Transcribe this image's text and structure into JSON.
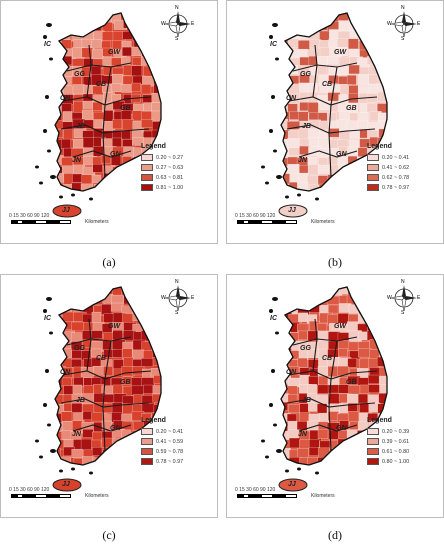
{
  "panels": [
    {
      "label": "(a)",
      "legend_title": "Legend",
      "legend": [
        {
          "range": "0.20 ~ 0.27",
          "color": "#f7d6d2"
        },
        {
          "range": "0.27 ~ 0.63",
          "color": "#eb9c8d"
        },
        {
          "range": "0.63 ~ 0.81",
          "color": "#d6533f"
        },
        {
          "range": "0.81 ~ 1.00",
          "color": "#a80f0f"
        }
      ],
      "regions": [
        "IC",
        "GW",
        "GG",
        "CN",
        "CB",
        "JB",
        "GB",
        "GN",
        "JN",
        "JJ"
      ],
      "palette": {
        "base": "#d9442e",
        "light": "#ec9a88",
        "dark": "#a51010"
      }
    },
    {
      "label": "(b)",
      "legend_title": "Legend",
      "legend": [
        {
          "range": "0.20 ~ 0.41",
          "color": "#f7dcda"
        },
        {
          "range": "0.41 ~ 0.62",
          "color": "#ecaa9d"
        },
        {
          "range": "0.62 ~ 0.78",
          "color": "#dc6a55"
        },
        {
          "range": "0.78 ~ 0.97",
          "color": "#c22a1a"
        }
      ],
      "regions": [
        "IC",
        "GW",
        "GG",
        "CN",
        "CB",
        "JB",
        "GB",
        "GN",
        "JN",
        "JJ"
      ],
      "palette": {
        "base": "#f3cfc7",
        "light": "#f8e4e0",
        "dark": "#d05a45"
      }
    },
    {
      "label": "(c)",
      "legend_title": "Legend",
      "legend": [
        {
          "range": "0.20 ~ 0.41",
          "color": "#f7d6d2"
        },
        {
          "range": "0.41 ~ 0.59",
          "color": "#eb9c8d"
        },
        {
          "range": "0.59 ~ 0.78",
          "color": "#d6533f"
        },
        {
          "range": "0.78 ~ 0.97",
          "color": "#b01a14"
        }
      ],
      "regions": [
        "IC",
        "GW",
        "GG",
        "CN",
        "CB",
        "JB",
        "GB",
        "GN",
        "JN",
        "JJ"
      ],
      "palette": {
        "base": "#d8412c",
        "light": "#e98a78",
        "dark": "#a81212"
      }
    },
    {
      "label": "(d)",
      "legend_title": "Legend",
      "legend": [
        {
          "range": "0.20 ~ 0.39",
          "color": "#f7dcda"
        },
        {
          "range": "0.39 ~ 0.61",
          "color": "#eca89b"
        },
        {
          "range": "0.61 ~ 0.80",
          "color": "#db5e48"
        },
        {
          "range": "0.80 ~ 1.00",
          "color": "#b3180f"
        }
      ],
      "regions": [
        "IC",
        "GW",
        "GG",
        "CN",
        "CB",
        "JB",
        "GB",
        "GN",
        "JN",
        "JJ"
      ],
      "palette": {
        "base": "#dc5a44",
        "light": "#f4cbc3",
        "dark": "#b0150f"
      }
    }
  ],
  "scale": {
    "numbers": "0 15 30    60    90    120",
    "unit": "Kilometers"
  },
  "compass": {
    "n": "N",
    "s": "S",
    "w": "W",
    "e": "E"
  }
}
